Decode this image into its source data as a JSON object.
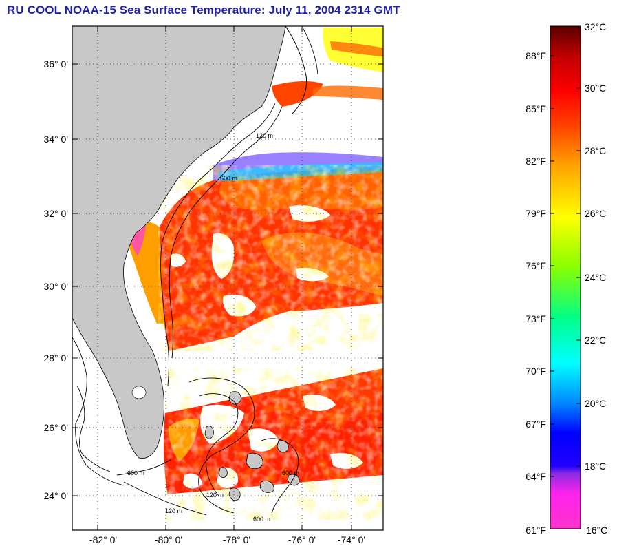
{
  "title": "RU COOL  NOAA-15  Sea Surface Temperature:  July 11, 2004 2314 GMT",
  "map": {
    "lat_labels": [
      "36° 0'",
      "34° 0'",
      "32° 0'",
      "30° 0'",
      "28° 0'",
      "26° 0'",
      "24° 0'"
    ],
    "lon_labels": [
      "-82° 0'",
      "-80° 0'",
      "-78° 0'",
      "-76° 0'",
      "-74° 0'"
    ],
    "contour_labels": [
      "120 m",
      "600 m",
      "600 m",
      "120 m",
      "600 m",
      "120 m",
      "600 m"
    ],
    "colors": {
      "land": "#c8c8c8",
      "ocean_nodata": "#ffffff",
      "grid": "#555555"
    }
  },
  "colorbar": {
    "celsius_labels": [
      "32°C",
      "30°C",
      "28°C",
      "26°C",
      "24°C",
      "22°C",
      "20°C",
      "18°C",
      "16°C"
    ],
    "fahrenheit_labels": [
      "88°F",
      "85°F",
      "82°F",
      "79°F",
      "76°F",
      "73°F",
      "70°F",
      "67°F",
      "64°F",
      "61°F"
    ],
    "colors": [
      "#ff33cc",
      "#8a2be2",
      "#0000ff",
      "#00a0ff",
      "#00ffff",
      "#00ff88",
      "#66ff00",
      "#ffff00",
      "#ffa500",
      "#ff4400",
      "#ff0000",
      "#6a0000"
    ]
  }
}
